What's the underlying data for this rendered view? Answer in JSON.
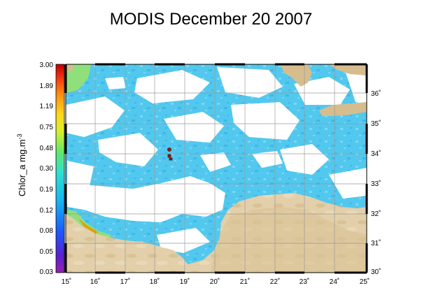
{
  "title": "MODIS December 20 2007",
  "colorbar": {
    "label": "Chlor_a mg.m",
    "label_sup": "-3",
    "ticks": [
      "3.00",
      "1.89",
      "1.19",
      "0.75",
      "0.48",
      "0.30",
      "0.19",
      "0.12",
      "0.08",
      "0.05",
      "0.03"
    ]
  },
  "axes": {
    "lon_ticks": [
      "15˚",
      "16˚",
      "17˚",
      "18˚",
      "19˚",
      "20˚",
      "21˚",
      "22˚",
      "23˚",
      "24˚",
      "25˚"
    ],
    "lat_ticks": [
      "36˚",
      "35˚",
      "34˚",
      "33˚",
      "32˚",
      "31˚",
      "30˚"
    ]
  },
  "colors": {
    "land": "#e3cfa9",
    "land_shade": "#d6bd8e",
    "chlorophyll": "#52c8ee",
    "chlorophyll_light": "#7fd6f1",
    "coastal_bloom": "#8fe07a",
    "no_data": "#ffffff",
    "grid": "#9a9a9a"
  },
  "map": {
    "lon_range": [
      14.9,
      25
    ],
    "lat_range": [
      30,
      36.8
    ],
    "stations": [
      {
        "lon": 18.45,
        "lat": 34.15
      },
      {
        "lon": 18.45,
        "lat": 33.95
      },
      {
        "lon": 18.5,
        "lat": 33.88
      }
    ]
  }
}
